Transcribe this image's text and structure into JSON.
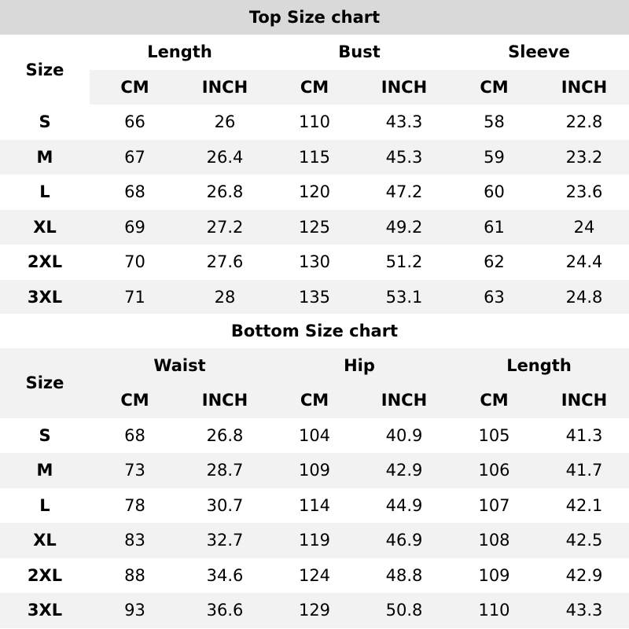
{
  "top": {
    "title": "Top Size chart",
    "size_label": "Size",
    "groups": [
      "Length",
      "Bust",
      "Sleeve"
    ],
    "units": [
      "CM",
      "INCH",
      "CM",
      "INCH",
      "CM",
      "INCH"
    ],
    "rows": [
      {
        "size": "S",
        "values": [
          "66",
          "26",
          "110",
          "43.3",
          "58",
          "22.8"
        ]
      },
      {
        "size": "M",
        "values": [
          "67",
          "26.4",
          "115",
          "45.3",
          "59",
          "23.2"
        ]
      },
      {
        "size": "L",
        "values": [
          "68",
          "26.8",
          "120",
          "47.2",
          "60",
          "23.6"
        ]
      },
      {
        "size": "XL",
        "values": [
          "69",
          "27.2",
          "125",
          "49.2",
          "61",
          "24"
        ]
      },
      {
        "size": "2XL",
        "values": [
          "70",
          "27.6",
          "130",
          "51.2",
          "62",
          "24.4"
        ]
      },
      {
        "size": "3XL",
        "values": [
          "71",
          "28",
          "135",
          "53.1",
          "63",
          "24.8"
        ]
      }
    ]
  },
  "bottom": {
    "title": "Bottom Size chart",
    "size_label": "Size",
    "groups": [
      "Waist",
      "Hip",
      "Length"
    ],
    "units": [
      "CM",
      "INCH",
      "CM",
      "INCH",
      "CM",
      "INCH"
    ],
    "rows": [
      {
        "size": "S",
        "values": [
          "68",
          "26.8",
          "104",
          "40.9",
          "105",
          "41.3"
        ]
      },
      {
        "size": "M",
        "values": [
          "73",
          "28.7",
          "109",
          "42.9",
          "106",
          "41.7"
        ]
      },
      {
        "size": "L",
        "values": [
          "78",
          "30.7",
          "114",
          "44.9",
          "107",
          "42.1"
        ]
      },
      {
        "size": "XL",
        "values": [
          "83",
          "32.7",
          "119",
          "46.9",
          "108",
          "42.5"
        ]
      },
      {
        "size": "2XL",
        "values": [
          "88",
          "34.6",
          "124",
          "48.8",
          "109",
          "42.9"
        ]
      },
      {
        "size": "3XL",
        "values": [
          "93",
          "36.6",
          "129",
          "50.8",
          "110",
          "43.3"
        ]
      }
    ]
  },
  "colors": {
    "title_bar": "#d9d9d9",
    "stripe": "#f2f2f2"
  }
}
